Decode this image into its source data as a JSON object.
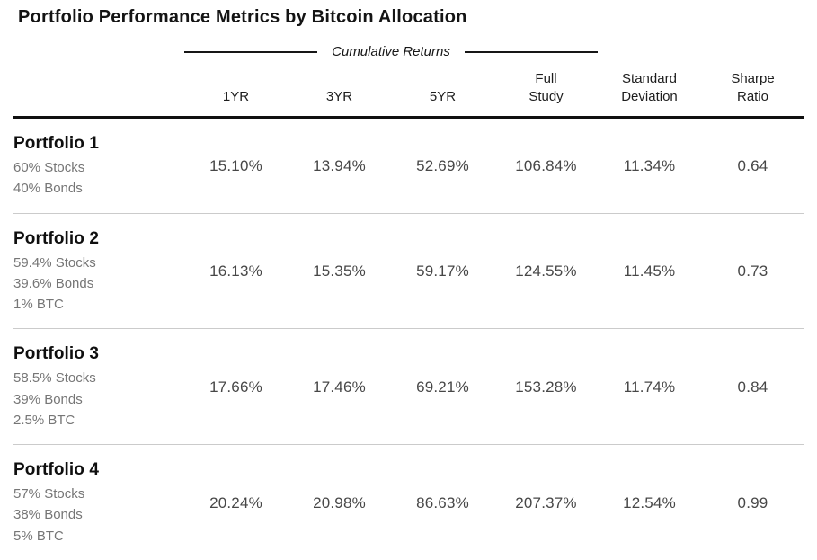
{
  "title": "Portfolio Performance Metrics by Bitcoin Allocation",
  "header": {
    "group_label": "Cumulative Returns",
    "cells": [
      "1YR",
      "3YR",
      "5YR",
      "Full\nStudy",
      "Standard\nDeviation",
      "Sharpe\nRatio"
    ]
  },
  "chart_data": {
    "type": "table",
    "title": "Portfolio Performance Metrics by Bitcoin Allocation",
    "column_group": {
      "label": "Cumulative Returns",
      "applies_to": [
        "1YR",
        "3YR",
        "5YR",
        "Full Study"
      ]
    },
    "columns": [
      "Portfolio",
      "1YR",
      "3YR",
      "5YR",
      "Full Study",
      "Standard Deviation",
      "Sharpe Ratio"
    ],
    "rows": [
      {
        "name": "Portfolio 1",
        "allocation": [
          "60% Stocks",
          "40% Bonds"
        ],
        "values": [
          "15.10%",
          "13.94%",
          "52.69%",
          "106.84%",
          "11.34%",
          "0.64"
        ]
      },
      {
        "name": "Portfolio 2",
        "allocation": [
          "59.4% Stocks",
          "39.6% Bonds",
          "1% BTC"
        ],
        "values": [
          "16.13%",
          "15.35%",
          "59.17%",
          "124.55%",
          "11.45%",
          "0.73"
        ]
      },
      {
        "name": "Portfolio 3",
        "allocation": [
          "58.5% Stocks",
          "39% Bonds",
          "2.5% BTC"
        ],
        "values": [
          "17.66%",
          "17.46%",
          "69.21%",
          "153.28%",
          "11.74%",
          "0.84"
        ]
      },
      {
        "name": "Portfolio 4",
        "allocation": [
          "57% Stocks",
          "38% Bonds",
          "5% BTC"
        ],
        "values": [
          "20.24%",
          "20.98%",
          "86.63%",
          "207.37%",
          "12.54%",
          "0.99"
        ]
      }
    ]
  }
}
